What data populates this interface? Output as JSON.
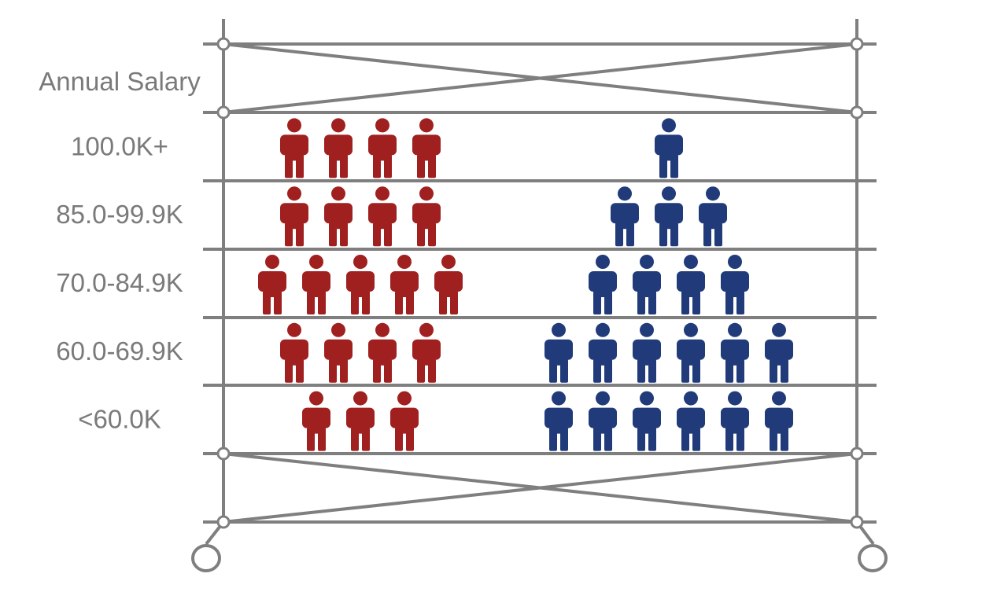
{
  "chart_data": {
    "type": "pictograph",
    "title": "",
    "category_header": "Annual Salary",
    "categories": [
      "100.0K+",
      "85.0-99.9K",
      "70.0-84.9K",
      "60.0-69.9K",
      "<60.0K"
    ],
    "series": [
      {
        "color": "#a02020",
        "values": [
          4,
          4,
          5,
          4,
          3
        ]
      },
      {
        "color": "#213b7a",
        "values": [
          1,
          3,
          4,
          6,
          6
        ]
      }
    ]
  },
  "colors": {
    "frame": "#7f7f7f",
    "label_text": "#7a7a7a"
  },
  "icons": {
    "person": "person-icon"
  }
}
